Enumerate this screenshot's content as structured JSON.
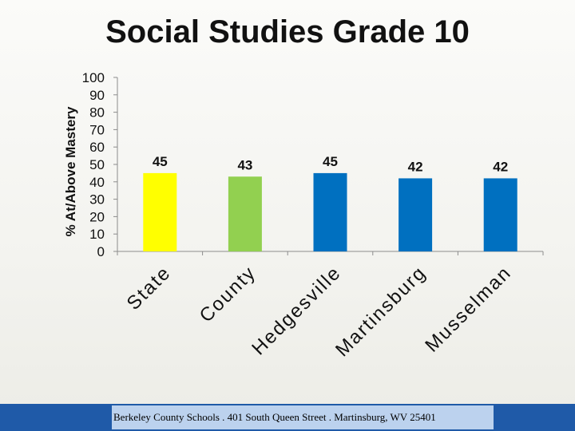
{
  "chart_data": {
    "type": "bar",
    "title": "Social Studies Grade 10",
    "ylabel": "% At/Above Mastery",
    "xlabel": "",
    "ylim": [
      0,
      100
    ],
    "yticks": [
      0,
      10,
      20,
      30,
      40,
      50,
      60,
      70,
      80,
      90,
      100
    ],
    "categories": [
      "State",
      "County",
      "Hedgesville",
      "Martinsburg",
      "Musselman"
    ],
    "values": [
      45,
      43,
      45,
      42,
      42
    ],
    "colors": [
      "#ffff00",
      "#92d050",
      "#0070c0",
      "#0070c0",
      "#0070c0"
    ],
    "grid": false,
    "legend": "none"
  },
  "footer": {
    "text": "Berkeley County Schools . 401 South Queen Street . Martinsburg, WV  25401"
  }
}
